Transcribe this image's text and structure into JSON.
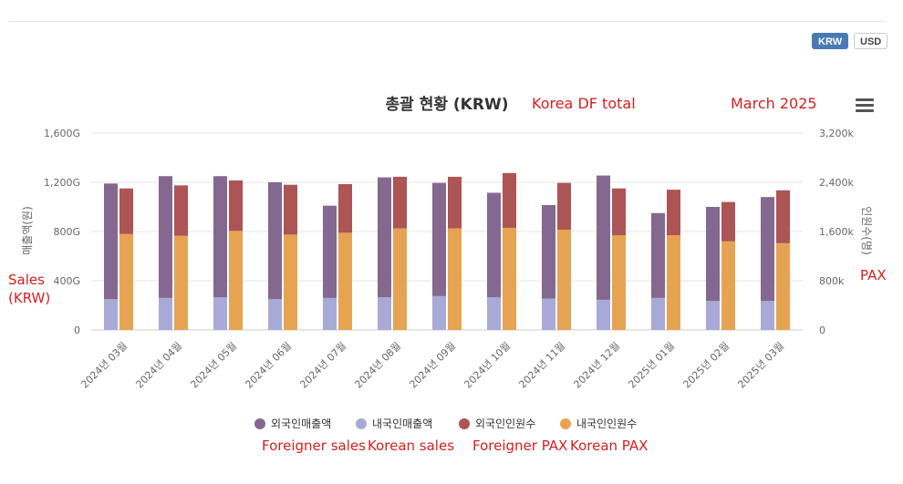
{
  "currency": {
    "krw_label": "KRW",
    "usd_label": "USD",
    "active": "KRW"
  },
  "annotations": {
    "title_note": "Korea DF total",
    "date_note": "March 2025",
    "left_axis_note_1": "Sales",
    "left_axis_note_2": "(KRW)",
    "right_axis_note": "PAX",
    "legend_notes": [
      "Foreigner sales",
      "Korean sales",
      "Foreigner PAX",
      "Korean PAX"
    ]
  },
  "chart_data": {
    "type": "bar",
    "title": "총괄 현황 (KRW)",
    "categories": [
      "2024년 03월",
      "2024년 04월",
      "2024년 05월",
      "2024년 06월",
      "2024년 07월",
      "2024년 08월",
      "2024년 09월",
      "2024년 10월",
      "2024년 11월",
      "2024년 12월",
      "2025년 01월",
      "2025년 02월",
      "2025년 03월"
    ],
    "y_left": {
      "label": "매출액(원)",
      "ticks": [
        "0",
        "400G",
        "800G",
        "1,200G",
        "1,600G"
      ],
      "range": [
        0,
        1600
      ]
    },
    "y_right": {
      "label": "인원수(명)",
      "ticks": [
        "0",
        "800k",
        "1,600k",
        "2,400k",
        "3,200k"
      ],
      "range": [
        0,
        3200
      ]
    },
    "series": [
      {
        "name": "외국인매출액",
        "stack": "sales",
        "axis": "left",
        "color": "#85688f",
        "values": [
          940,
          990,
          985,
          950,
          750,
          975,
          920,
          850,
          760,
          1010,
          690,
          765,
          845
        ]
      },
      {
        "name": "내국인매출액",
        "stack": "sales",
        "axis": "left",
        "color": "#a9a9d8",
        "values": [
          250,
          260,
          265,
          250,
          260,
          265,
          275,
          265,
          255,
          245,
          260,
          235,
          235
        ]
      },
      {
        "name": "외국인인원수",
        "stack": "pax",
        "axis": "right",
        "color": "#ad5454",
        "values": [
          740,
          820,
          820,
          810,
          790,
          840,
          840,
          890,
          760,
          760,
          740,
          640,
          860
        ]
      },
      {
        "name": "내국인인원수",
        "stack": "pax",
        "axis": "right",
        "color": "#e6a452",
        "values": [
          1560,
          1530,
          1610,
          1550,
          1580,
          1650,
          1650,
          1660,
          1630,
          1540,
          1540,
          1440,
          1410
        ]
      }
    ],
    "legend_position": "bottom",
    "grid": true
  }
}
